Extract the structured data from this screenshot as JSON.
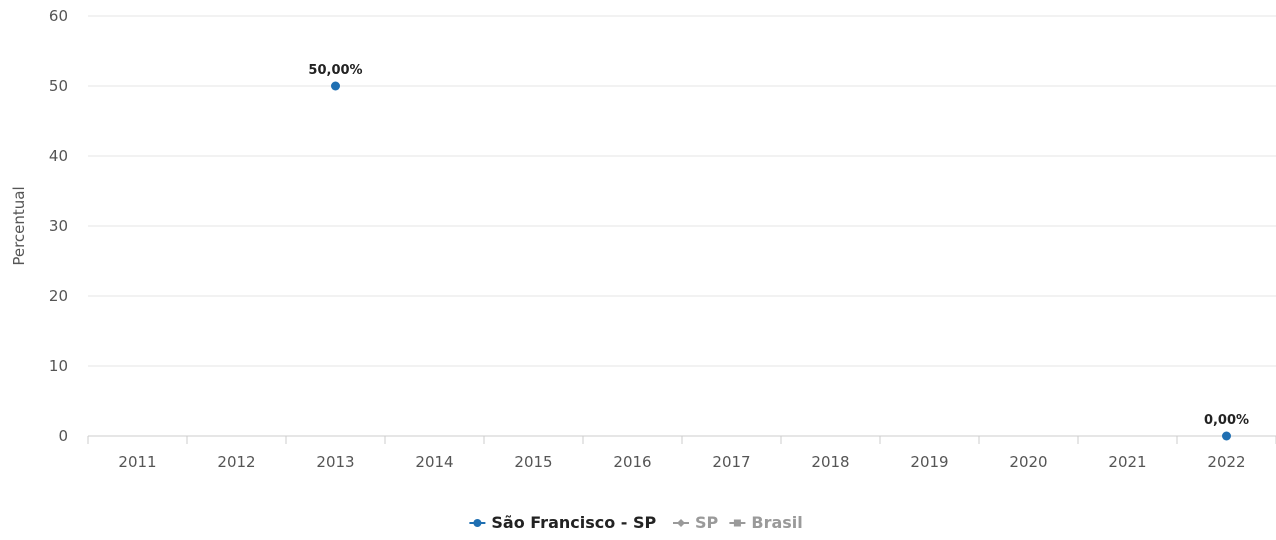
{
  "chart_data": {
    "type": "line",
    "ylabel": "Percentual",
    "ylim": [
      0,
      60
    ],
    "yticks": [
      0,
      10,
      20,
      30,
      40,
      50,
      60
    ],
    "categories": [
      "2011",
      "2012",
      "2013",
      "2014",
      "2015",
      "2016",
      "2017",
      "2018",
      "2019",
      "2020",
      "2021",
      "2022"
    ],
    "grid": true,
    "legend_position": "bottom-center",
    "series": [
      {
        "name": "São Francisco - SP",
        "color": "#1f6fb2",
        "marker": "circle",
        "legend_color": "#1f6fb2",
        "legend_text_color": "#222222",
        "points": [
          {
            "x": "2013",
            "y": 50,
            "label": "50,00%"
          },
          {
            "x": "2022",
            "y": 0,
            "label": "0,00%"
          }
        ]
      },
      {
        "name": "SP",
        "color": "#9a9a9a",
        "marker": "diamond",
        "legend_color": "#9a9a9a",
        "legend_text_color": "#9a9a9a",
        "points": []
      },
      {
        "name": "Brasil",
        "color": "#9a9a9a",
        "marker": "square",
        "legend_color": "#9a9a9a",
        "legend_text_color": "#9a9a9a",
        "points": []
      }
    ]
  }
}
